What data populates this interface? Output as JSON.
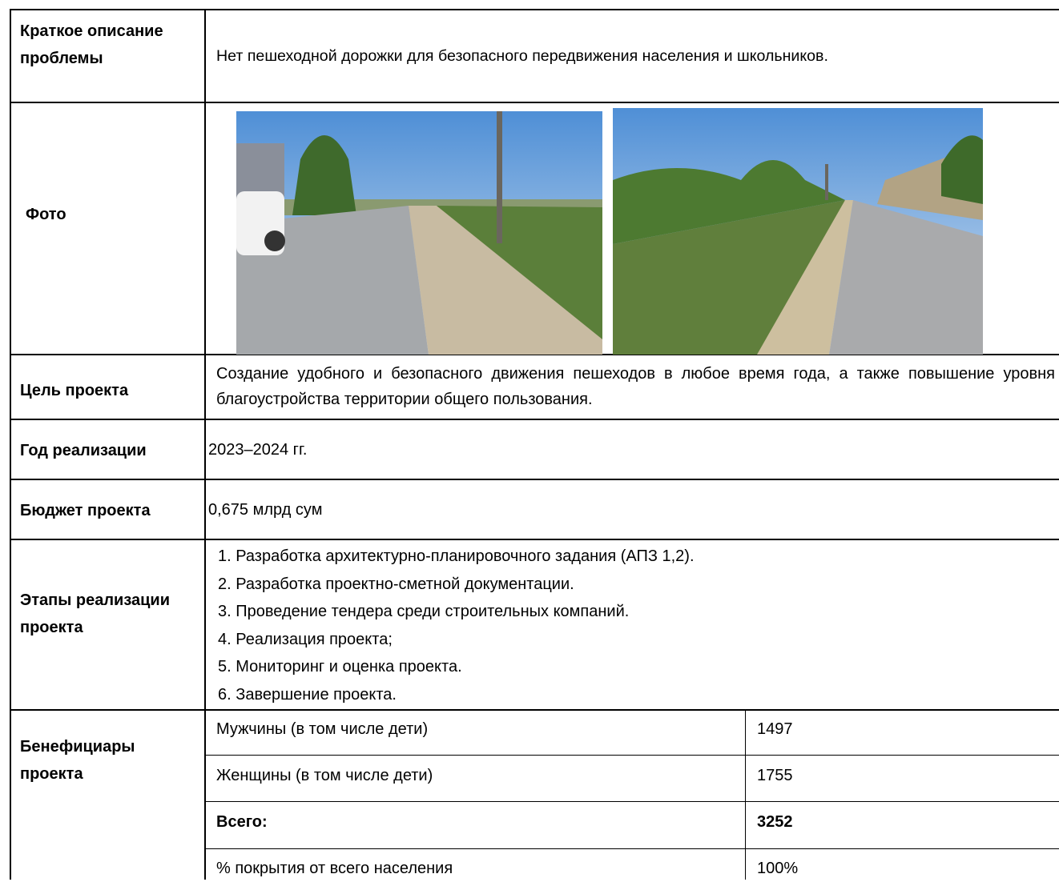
{
  "table": {
    "problem": {
      "label": "Краткое описание проблемы",
      "value": "Нет пешеходной дорожки для безопасного передвижения населения и школьников."
    },
    "photo": {
      "label": "Фото"
    },
    "goal": {
      "label": "Цель проекта",
      "value": "Создание удобного и безопасного движения пешеходов в любое время года, а также повышение уровня благоустройства территории общего пользования."
    },
    "year": {
      "label": "Год реализации",
      "value": "2023–2024 гг."
    },
    "budget": {
      "label": "Бюджет проекта",
      "value": "0,675 млрд сум"
    },
    "stages": {
      "label": "Этапы реализации проекта",
      "items": [
        "1. Разработка архитектурно-планировочного задания (АПЗ 1,2).",
        "2. Разработка проектно-сметной документации.",
        "3. Проведение тендера среди строительных компаний.",
        "4. Реализация проекта;",
        "5. Мониторинг и оценка проекта.",
        "6. Завершение проекта."
      ]
    },
    "beneficiaries": {
      "label": "Бенефициары проекта",
      "rows": [
        [
          "Мужчины (в том числе дети)",
          "1497"
        ],
        [
          "Женщины (в том числе дети)",
          "1755"
        ],
        [
          "Всего:",
          "3252"
        ],
        [
          "% покрытия от всего населения",
          "100%"
        ]
      ]
    }
  }
}
